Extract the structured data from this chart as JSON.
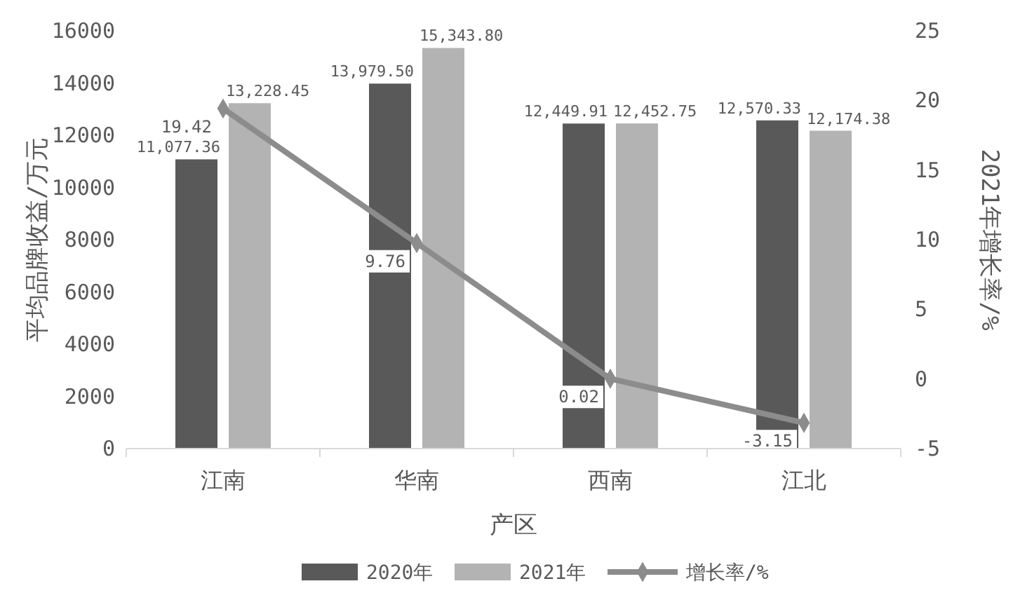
{
  "chart_data": {
    "type": "bar",
    "xlabel": "产区",
    "ylabel": "平均品牌收益/万元",
    "y2label": "2021年增长率/%",
    "categories": [
      "江南",
      "华南",
      "西南",
      "江北"
    ],
    "series": [
      {
        "name": "2020年",
        "color": "#595959",
        "values": [
          11077.36,
          13979.5,
          12449.91,
          12570.33
        ],
        "value_labels": [
          "11,077.36",
          "13,979.50",
          "12,449.91",
          "12,570.33"
        ]
      },
      {
        "name": "2021年",
        "color": "#b3b3b3",
        "values": [
          13228.45,
          15343.8,
          12452.75,
          12174.38
        ],
        "value_labels": [
          "13,228.45",
          "15,343.80",
          "12,452.75",
          "12,174.38"
        ]
      },
      {
        "name": "增长率/%",
        "type": "line",
        "axis": "y2",
        "color": "#8c8c8c",
        "values": [
          19.42,
          9.76,
          0.02,
          -3.15
        ],
        "value_labels": [
          "19.42",
          "9.76",
          "0.02",
          "-3.15"
        ]
      }
    ],
    "ylim": [
      0,
      16000
    ],
    "yticks": [
      0,
      2000,
      4000,
      6000,
      8000,
      10000,
      12000,
      14000,
      16000
    ],
    "y2lim": [
      -5,
      25
    ],
    "y2ticks": [
      -5,
      0,
      5,
      10,
      15,
      20,
      25
    ],
    "legend": "bottom",
    "marker": "diamond",
    "grid": false
  }
}
